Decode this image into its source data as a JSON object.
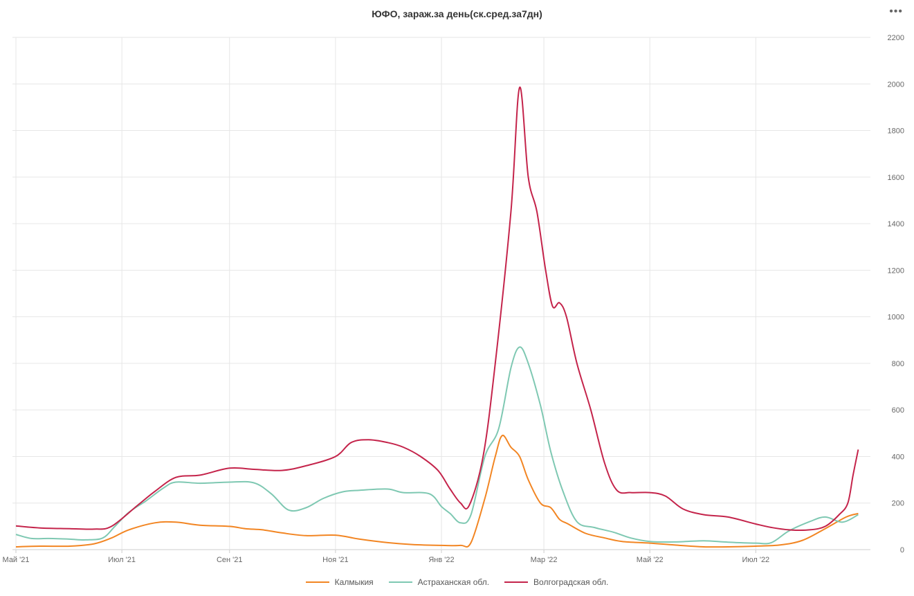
{
  "title": "ЮФО, зараж.за день(ск.сред.за7дн)",
  "menu_label": "•••",
  "chart_data": {
    "type": "line",
    "title": "ЮФО, зараж.за день(ск.сред.за7дн)",
    "ylim": [
      0,
      2200
    ],
    "yticks": [
      0,
      200,
      400,
      600,
      800,
      1000,
      1200,
      1400,
      1600,
      1800,
      2000,
      2200
    ],
    "y_axis_side": "right",
    "grid": true,
    "legend_position": "bottom-center",
    "x_range": [
      "2021-04-29",
      "2022-09-05"
    ],
    "xticks": [
      {
        "date": "2021-05-01",
        "label": "Май '21"
      },
      {
        "date": "2021-07-01",
        "label": "Июл '21"
      },
      {
        "date": "2021-09-01",
        "label": "Сен '21"
      },
      {
        "date": "2021-11-01",
        "label": "Ноя '21"
      },
      {
        "date": "2022-01-01",
        "label": "Янв '22"
      },
      {
        "date": "2022-03-01",
        "label": "Мар '22"
      },
      {
        "date": "2022-05-01",
        "label": "Май '22"
      },
      {
        "date": "2022-07-01",
        "label": "Июл '22"
      }
    ],
    "series": [
      {
        "name": "Калмыкия",
        "color": "#f28522",
        "points": [
          [
            "2021-05-01",
            12
          ],
          [
            "2021-05-15",
            15
          ],
          [
            "2021-06-01",
            15
          ],
          [
            "2021-06-15",
            25
          ],
          [
            "2021-06-25",
            50
          ],
          [
            "2021-07-05",
            85
          ],
          [
            "2021-07-20",
            115
          ],
          [
            "2021-08-01",
            118
          ],
          [
            "2021-08-15",
            105
          ],
          [
            "2021-09-01",
            100
          ],
          [
            "2021-09-10",
            90
          ],
          [
            "2021-09-20",
            85
          ],
          [
            "2021-10-01",
            72
          ],
          [
            "2021-10-15",
            60
          ],
          [
            "2021-11-01",
            62
          ],
          [
            "2021-11-15",
            45
          ],
          [
            "2021-12-01",
            30
          ],
          [
            "2021-12-15",
            22
          ],
          [
            "2022-01-01",
            18
          ],
          [
            "2022-01-12",
            18
          ],
          [
            "2022-01-18",
            30
          ],
          [
            "2022-01-26",
            220
          ],
          [
            "2022-02-01",
            400
          ],
          [
            "2022-02-05",
            490
          ],
          [
            "2022-02-10",
            440
          ],
          [
            "2022-02-15",
            400
          ],
          [
            "2022-02-20",
            300
          ],
          [
            "2022-02-27",
            200
          ],
          [
            "2022-03-05",
            180
          ],
          [
            "2022-03-10",
            130
          ],
          [
            "2022-03-15",
            110
          ],
          [
            "2022-03-25",
            70
          ],
          [
            "2022-04-05",
            50
          ],
          [
            "2022-04-15",
            35
          ],
          [
            "2022-05-01",
            28
          ],
          [
            "2022-05-15",
            20
          ],
          [
            "2022-06-01",
            12
          ],
          [
            "2022-06-15",
            12
          ],
          [
            "2022-07-01",
            15
          ],
          [
            "2022-07-15",
            20
          ],
          [
            "2022-07-28",
            40
          ],
          [
            "2022-08-10",
            90
          ],
          [
            "2022-08-22",
            140
          ],
          [
            "2022-08-29",
            155
          ]
        ]
      },
      {
        "name": "Астраханская обл.",
        "color": "#7ec8b2",
        "points": [
          [
            "2021-05-01",
            65
          ],
          [
            "2021-05-10",
            48
          ],
          [
            "2021-05-20",
            48
          ],
          [
            "2021-06-01",
            45
          ],
          [
            "2021-06-10",
            42
          ],
          [
            "2021-06-20",
            50
          ],
          [
            "2021-06-27",
            100
          ],
          [
            "2021-07-05",
            160
          ],
          [
            "2021-07-15",
            210
          ],
          [
            "2021-07-25",
            265
          ],
          [
            "2021-08-01",
            290
          ],
          [
            "2021-08-15",
            285
          ],
          [
            "2021-09-01",
            290
          ],
          [
            "2021-09-15",
            287
          ],
          [
            "2021-09-25",
            240
          ],
          [
            "2021-10-05",
            170
          ],
          [
            "2021-10-15",
            180
          ],
          [
            "2021-10-25",
            220
          ],
          [
            "2021-11-05",
            248
          ],
          [
            "2021-11-15",
            255
          ],
          [
            "2021-12-01",
            260
          ],
          [
            "2021-12-10",
            245
          ],
          [
            "2021-12-25",
            240
          ],
          [
            "2022-01-01",
            185
          ],
          [
            "2022-01-06",
            155
          ],
          [
            "2022-01-12",
            115
          ],
          [
            "2022-01-18",
            150
          ],
          [
            "2022-01-26",
            400
          ],
          [
            "2022-02-03",
            520
          ],
          [
            "2022-02-10",
            780
          ],
          [
            "2022-02-15",
            870
          ],
          [
            "2022-02-20",
            800
          ],
          [
            "2022-02-27",
            620
          ],
          [
            "2022-03-05",
            420
          ],
          [
            "2022-03-12",
            250
          ],
          [
            "2022-03-20",
            120
          ],
          [
            "2022-03-30",
            95
          ],
          [
            "2022-04-10",
            75
          ],
          [
            "2022-04-20",
            50
          ],
          [
            "2022-05-01",
            35
          ],
          [
            "2022-05-15",
            33
          ],
          [
            "2022-06-01",
            38
          ],
          [
            "2022-06-15",
            32
          ],
          [
            "2022-07-01",
            28
          ],
          [
            "2022-07-10",
            30
          ],
          [
            "2022-07-20",
            80
          ],
          [
            "2022-08-01",
            120
          ],
          [
            "2022-08-10",
            140
          ],
          [
            "2022-08-20",
            118
          ],
          [
            "2022-08-29",
            150
          ]
        ]
      },
      {
        "name": "Волгоградская обл.",
        "color": "#c4234a",
        "points": [
          [
            "2021-05-01",
            102
          ],
          [
            "2021-05-15",
            93
          ],
          [
            "2021-06-01",
            90
          ],
          [
            "2021-06-15",
            88
          ],
          [
            "2021-06-25",
            100
          ],
          [
            "2021-07-10",
            190
          ],
          [
            "2021-07-20",
            250
          ],
          [
            "2021-08-01",
            310
          ],
          [
            "2021-08-15",
            320
          ],
          [
            "2021-09-01",
            350
          ],
          [
            "2021-09-15",
            345
          ],
          [
            "2021-10-01",
            340
          ],
          [
            "2021-10-15",
            360
          ],
          [
            "2021-11-01",
            400
          ],
          [
            "2021-11-10",
            460
          ],
          [
            "2021-11-20",
            472
          ],
          [
            "2021-12-01",
            460
          ],
          [
            "2021-12-10",
            440
          ],
          [
            "2021-12-20",
            400
          ],
          [
            "2021-12-30",
            340
          ],
          [
            "2022-01-06",
            260
          ],
          [
            "2022-01-12",
            200
          ],
          [
            "2022-01-17",
            190
          ],
          [
            "2022-01-25",
            400
          ],
          [
            "2022-02-01",
            800
          ],
          [
            "2022-02-10",
            1450
          ],
          [
            "2022-02-15",
            1985
          ],
          [
            "2022-02-20",
            1600
          ],
          [
            "2022-02-25",
            1450
          ],
          [
            "2022-03-02",
            1200
          ],
          [
            "2022-03-06",
            1045
          ],
          [
            "2022-03-10",
            1060
          ],
          [
            "2022-03-14",
            1000
          ],
          [
            "2022-03-20",
            800
          ],
          [
            "2022-03-28",
            600
          ],
          [
            "2022-04-05",
            370
          ],
          [
            "2022-04-12",
            255
          ],
          [
            "2022-04-20",
            245
          ],
          [
            "2022-05-01",
            245
          ],
          [
            "2022-05-10",
            230
          ],
          [
            "2022-05-20",
            175
          ],
          [
            "2022-06-01",
            150
          ],
          [
            "2022-06-15",
            140
          ],
          [
            "2022-07-01",
            110
          ],
          [
            "2022-07-10",
            95
          ],
          [
            "2022-07-20",
            85
          ],
          [
            "2022-08-01",
            85
          ],
          [
            "2022-08-10",
            100
          ],
          [
            "2022-08-18",
            150
          ],
          [
            "2022-08-23",
            200
          ],
          [
            "2022-08-26",
            320
          ],
          [
            "2022-08-29",
            430
          ]
        ]
      }
    ]
  }
}
